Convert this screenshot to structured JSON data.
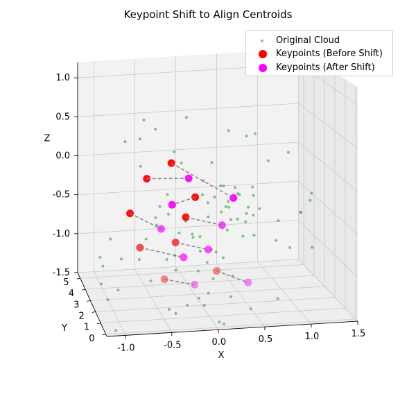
{
  "chart_data": {
    "type": "scatter",
    "title": "Keypoint Shift to Align Centroids",
    "xlabel": "X",
    "ylabel": "Y",
    "zlabel": "Z",
    "xlim": [
      -1.2,
      1.5
    ],
    "ylim": [
      -0.2,
      5.5
    ],
    "zlim": [
      -1.5,
      1.2
    ],
    "x_ticks": [
      "-1.0",
      "-0.5",
      "0.0",
      "0.5",
      "1.0",
      "1.5"
    ],
    "y_ticks": [
      "0",
      "1",
      "2",
      "3",
      "4",
      "5"
    ],
    "z_ticks": [
      "-1.5",
      "-1.0",
      "-0.5",
      "0.0",
      "0.5",
      "1.0"
    ],
    "x_tick_values": [
      -1.0,
      -0.5,
      0.0,
      0.5,
      1.0,
      1.5
    ],
    "y_tick_values": [
      0,
      1,
      2,
      3,
      4,
      5
    ],
    "z_tick_values": [
      -1.5,
      -1.0,
      -0.5,
      0.0,
      0.5,
      1.0
    ],
    "grid": true,
    "legend_position": "top-right",
    "colors": {
      "cloud": "#2ca02c",
      "before": "#ff0000",
      "after": "#ff00ff",
      "shift_line": "#808080"
    },
    "series": [
      {
        "name": "Original Cloud",
        "marker": "small-dot",
        "points": [
          [
            -0.62,
            2.5,
            0.72
          ],
          [
            -0.45,
            3.0,
            0.55
          ],
          [
            -0.05,
            3.5,
            0.62
          ],
          [
            0.3,
            2.0,
            0.58
          ],
          [
            -0.8,
            3.0,
            0.42
          ],
          [
            0.55,
            2.5,
            0.45
          ],
          [
            0.7,
            3.0,
            0.42
          ],
          [
            -0.6,
            3.4,
            0.4
          ],
          [
            0.85,
            3.0,
            0.08
          ],
          [
            -0.65,
            2.6,
            0.15
          ],
          [
            -0.25,
            2.8,
            0.28
          ],
          [
            0.2,
            3.0,
            0.1
          ],
          [
            0.3,
            2.6,
            -0.15
          ],
          [
            0.45,
            2.8,
            -0.2
          ],
          [
            0.5,
            3.0,
            -0.3
          ],
          [
            0.35,
            2.5,
            -0.4
          ],
          [
            0.25,
            3.2,
            -0.35
          ],
          [
            0.6,
            2.8,
            -0.45
          ],
          [
            0.4,
            3.4,
            -0.5
          ],
          [
            0.15,
            2.9,
            -0.55
          ],
          [
            0.55,
            2.6,
            -0.6
          ],
          [
            0.1,
            3.1,
            -0.3
          ],
          [
            0.45,
            3.3,
            -0.65
          ],
          [
            0.6,
            3.0,
            -0.55
          ],
          [
            0.7,
            3.2,
            -0.6
          ],
          [
            0.35,
            2.7,
            -0.7
          ],
          [
            0.2,
            3.5,
            -0.45
          ],
          [
            0.5,
            2.4,
            -0.75
          ],
          [
            -0.1,
            3.0,
            -0.6
          ],
          [
            -0.2,
            2.7,
            -0.7
          ],
          [
            0.0,
            3.3,
            -0.8
          ],
          [
            0.15,
            2.5,
            -0.9
          ],
          [
            0.25,
            3.0,
            -1.0
          ],
          [
            0.05,
            2.8,
            -0.95
          ],
          [
            0.35,
            3.2,
            -1.1
          ],
          [
            -0.05,
            2.6,
            -0.75
          ],
          [
            0.1,
            3.4,
            -0.85
          ],
          [
            0.3,
            2.9,
            -0.5
          ],
          [
            0.4,
            3.1,
            -0.4
          ],
          [
            0.55,
            3.3,
            -0.35
          ],
          [
            0.65,
            2.7,
            -0.3
          ],
          [
            0.75,
            3.0,
            -0.5
          ],
          [
            0.45,
            2.5,
            -0.55
          ],
          [
            -0.3,
            3.0,
            -0.5
          ],
          [
            -0.45,
            2.8,
            -0.6
          ],
          [
            -0.55,
            3.1,
            -0.8
          ],
          [
            -0.35,
            2.6,
            -1.0
          ],
          [
            -0.2,
            3.3,
            -1.05
          ],
          [
            0.0,
            2.5,
            -1.15
          ],
          [
            0.2,
            3.6,
            -1.2
          ],
          [
            0.4,
            2.6,
            -1.25
          ],
          [
            -0.15,
            3.8,
            -1.3
          ],
          [
            0.1,
            2.3,
            -1.4
          ],
          [
            0.3,
            3.9,
            -1.45
          ],
          [
            -0.6,
            3.5,
            -1.1
          ],
          [
            0.9,
            2.6,
            -0.85
          ],
          [
            1.1,
            3.0,
            -1.0
          ],
          [
            1.2,
            2.8,
            -0.55
          ],
          [
            1.25,
            3.2,
            -0.6
          ],
          [
            1.3,
            2.7,
            -0.4
          ],
          [
            1.0,
            3.3,
            -0.7
          ],
          [
            1.35,
            3.0,
            -0.35
          ],
          [
            1.15,
            3.6,
            0.1
          ],
          [
            1.3,
            2.5,
            -0.95
          ],
          [
            -1.1,
            2.8,
            -0.95
          ],
          [
            -1.05,
            3.1,
            -1.1
          ],
          [
            -1.1,
            2.6,
            -1.25
          ],
          [
            -0.95,
            3.3,
            -0.8
          ],
          [
            -0.85,
            2.9,
            -1.0
          ],
          [
            -0.7,
            3.5,
            -0.55
          ],
          [
            -0.9,
            2.7,
            -1.35
          ],
          [
            -1.0,
            3.0,
            -1.5
          ],
          [
            -0.4,
            3.0,
            -0.4
          ],
          [
            -0.35,
            2.5,
            -0.2
          ],
          [
            -0.1,
            3.6,
            0.05
          ],
          [
            0.05,
            2.4,
            -0.05
          ],
          [
            0.35,
            3.5,
            -0.25
          ],
          [
            0.6,
            2.3,
            -0.15
          ],
          [
            0.75,
            3.6,
            -0.9
          ],
          [
            -0.5,
            2.3,
            -0.45
          ],
          [
            0.05,
            3.0,
            -1.55
          ],
          [
            0.15,
            3.4,
            -1.7
          ],
          [
            -0.1,
            2.8,
            -1.6
          ],
          [
            0.25,
            2.6,
            -1.8
          ],
          [
            -0.2,
            3.2,
            -1.75
          ],
          [
            0.35,
            3.1,
            -1.9
          ],
          [
            -0.3,
            2.9,
            -1.65
          ],
          [
            0.45,
            3.3,
            -1.6
          ],
          [
            -0.9,
            3.1,
            -1.9
          ],
          [
            0.6,
            2.5,
            -1.65
          ],
          [
            0.95,
            2.9,
            -1.6
          ],
          [
            -0.45,
            3.7,
            -1.4
          ]
        ]
      },
      {
        "name": "Keypoints (Before Shift)",
        "marker": "large-dot",
        "points": [
          [
            -0.55,
            3.0,
            -0.05
          ],
          [
            -0.25,
            3.2,
            0.1
          ],
          [
            0.0,
            2.9,
            -0.3
          ],
          [
            -0.75,
            2.9,
            -0.45
          ],
          [
            -0.1,
            3.0,
            -0.55
          ],
          [
            -0.25,
            2.6,
            -0.8
          ],
          [
            -0.65,
            2.7,
            -0.85
          ],
          [
            -0.4,
            2.3,
            -1.2
          ],
          [
            0.2,
            2.4,
            -1.15
          ]
        ]
      },
      {
        "name": "Keypoints (After Shift)",
        "marker": "large-dot",
        "points": [
          [
            -0.05,
            3.2,
            -0.1
          ],
          [
            0.45,
            3.0,
            -0.35
          ],
          [
            -0.25,
            3.1,
            -0.4
          ],
          [
            -0.4,
            2.8,
            -0.65
          ],
          [
            0.3,
            2.8,
            -0.65
          ],
          [
            0.15,
            2.9,
            -0.95
          ],
          [
            -0.15,
            2.7,
            -1.0
          ],
          [
            -0.05,
            2.4,
            -1.3
          ],
          [
            0.55,
            2.3,
            -1.3
          ]
        ]
      }
    ]
  }
}
